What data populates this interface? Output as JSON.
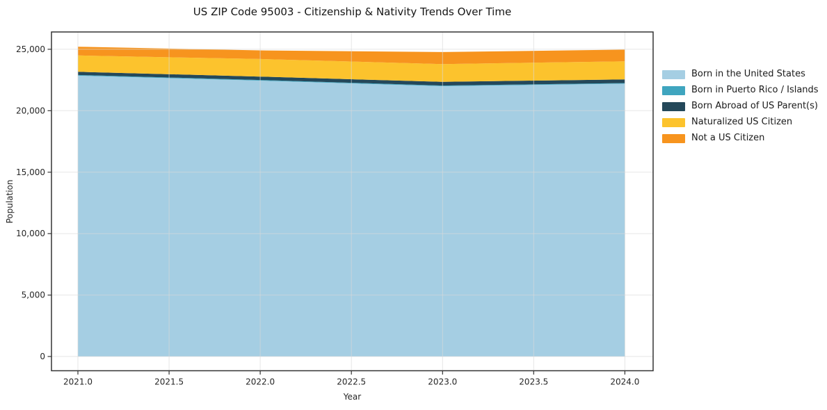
{
  "chart_data": {
    "type": "area",
    "stacked": true,
    "title": "US ZIP Code 95003 - Citizenship & Nativity Trends Over Time",
    "xlabel": "Year",
    "ylabel": "Population",
    "x": [
      2021,
      2022,
      2023,
      2024
    ],
    "series": [
      {
        "name": "Born in the United States",
        "color": "#a5cee3",
        "values": [
          22850,
          22450,
          22000,
          22200
        ]
      },
      {
        "name": "Born in Puerto Rico / Islands",
        "color": "#3fa5bf",
        "values": [
          60,
          50,
          50,
          55
        ]
      },
      {
        "name": "Born Abroad of US Parent(s)",
        "color": "#24485a",
        "values": [
          260,
          280,
          300,
          300
        ]
      },
      {
        "name": "Naturalized US Citizen",
        "color": "#fcc32d",
        "values": [
          1330,
          1430,
          1445,
          1470
        ]
      },
      {
        "name": "Not a US Citizen",
        "color": "#f7941e",
        "values": [
          710,
          700,
          980,
          950
        ]
      }
    ],
    "totals": [
      25210,
      24910,
      24775,
      24975
    ],
    "xticks": [
      2021.0,
      2021.5,
      2022.0,
      2022.5,
      2023.0,
      2023.5,
      2024.0
    ],
    "xtick_labels": [
      "2021.0",
      "2021.5",
      "2022.0",
      "2022.5",
      "2023.0",
      "2023.5",
      "2024.0"
    ],
    "yticks": [
      0,
      5000,
      10000,
      15000,
      20000,
      25000
    ],
    "ytick_labels": [
      "0",
      "5,000",
      "10,000",
      "15,000",
      "20,000",
      "25,000"
    ],
    "xlim": [
      2020.855,
      2024.155
    ],
    "ylim": [
      -1160,
      26410
    ],
    "grid": true,
    "legend_position": "right of plot"
  },
  "colors": {
    "background": "#ffffff",
    "grid": "#d9d9d9",
    "spine": "#333333",
    "tick": "#333333",
    "text": "#262626"
  }
}
